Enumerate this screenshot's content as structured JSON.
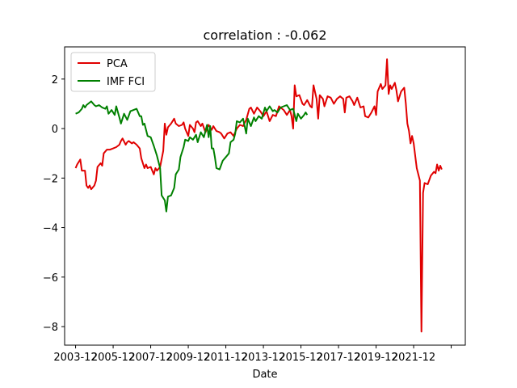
{
  "chart_data": {
    "type": "line",
    "title": "correlation : -0.062",
    "xlabel": "Date",
    "ylabel": "",
    "xlim": [
      "2003-05",
      "2024-09"
    ],
    "ylim": [
      -8.75,
      3.3
    ],
    "grid": false,
    "legend_position": "top-left",
    "x_tick_labels": [
      {
        "date": "2003-12",
        "label": "2003-12"
      },
      {
        "date": "2005-12",
        "label": "2005-12"
      },
      {
        "date": "2007-12",
        "label": "2007-12"
      },
      {
        "date": "2009-12",
        "label": "2009-12"
      },
      {
        "date": "2011-12",
        "label": "2011-12"
      },
      {
        "date": "2013-12",
        "label": "2013-12"
      },
      {
        "date": "2015-12",
        "label": "2015-12"
      },
      {
        "date": "2017-12",
        "label": "2017-12"
      },
      {
        "date": "2019-12",
        "label": "2019-12"
      },
      {
        "date": "2021-12",
        "label": "2021-12"
      },
      {
        "date": "2023-12",
        "label": ""
      }
    ],
    "y_ticks": [
      {
        "value": 2,
        "label": "2"
      },
      {
        "value": 0,
        "label": "0"
      },
      {
        "value": -2,
        "label": "−2"
      },
      {
        "value": -4,
        "label": "−4"
      },
      {
        "value": -6,
        "label": "−6"
      },
      {
        "value": -8,
        "label": "−8"
      }
    ],
    "series": [
      {
        "name": "PCA",
        "color": "#e00000",
        "points": [
          [
            "2003-12",
            -1.6
          ],
          [
            "2004-01",
            -1.45
          ],
          [
            "2004-03",
            -1.25
          ],
          [
            "2004-04",
            -1.7
          ],
          [
            "2004-06",
            -1.7
          ],
          [
            "2004-07",
            -2.3
          ],
          [
            "2004-08",
            -2.4
          ],
          [
            "2004-09",
            -2.3
          ],
          [
            "2004-10",
            -2.45
          ],
          [
            "2004-12",
            -2.3
          ],
          [
            "2005-01",
            -2.1
          ],
          [
            "2005-02",
            -1.55
          ],
          [
            "2005-04",
            -1.4
          ],
          [
            "2005-05",
            -1.5
          ],
          [
            "2005-06",
            -1.0
          ],
          [
            "2005-08",
            -0.85
          ],
          [
            "2005-10",
            -0.85
          ],
          [
            "2005-12",
            -0.8
          ],
          [
            "2006-02",
            -0.75
          ],
          [
            "2006-04",
            -0.65
          ],
          [
            "2006-05",
            -0.5
          ],
          [
            "2006-06",
            -0.4
          ],
          [
            "2006-08",
            -0.65
          ],
          [
            "2006-09",
            -0.55
          ],
          [
            "2006-10",
            -0.5
          ],
          [
            "2006-12",
            -0.6
          ],
          [
            "2007-01",
            -0.55
          ],
          [
            "2007-03",
            -0.65
          ],
          [
            "2007-05",
            -0.8
          ],
          [
            "2007-06",
            -1.2
          ],
          [
            "2007-08",
            -1.6
          ],
          [
            "2007-09",
            -1.45
          ],
          [
            "2007-10",
            -1.6
          ],
          [
            "2007-12",
            -1.55
          ],
          [
            "2008-02",
            -1.85
          ],
          [
            "2008-03",
            -1.6
          ],
          [
            "2008-04",
            -1.7
          ],
          [
            "2008-06",
            -1.55
          ],
          [
            "2008-08",
            -0.9
          ],
          [
            "2008-09",
            0.2
          ],
          [
            "2008-10",
            -0.25
          ],
          [
            "2008-11",
            0.05
          ],
          [
            "2009-01",
            0.2
          ],
          [
            "2009-03",
            0.4
          ],
          [
            "2009-04",
            0.2
          ],
          [
            "2009-06",
            0.1
          ],
          [
            "2009-08",
            0.15
          ],
          [
            "2009-09",
            0.25
          ],
          [
            "2009-10",
            0.0
          ],
          [
            "2009-12",
            -0.3
          ],
          [
            "2010-01",
            0.15
          ],
          [
            "2010-03",
            0.0
          ],
          [
            "2010-04",
            -0.15
          ],
          [
            "2010-05",
            0.25
          ],
          [
            "2010-06",
            0.3
          ],
          [
            "2010-08",
            0.1
          ],
          [
            "2010-09",
            0.2
          ],
          [
            "2010-11",
            -0.15
          ],
          [
            "2011-01",
            0.15
          ],
          [
            "2011-03",
            -0.05
          ],
          [
            "2011-04",
            0.1
          ],
          [
            "2011-06",
            -0.1
          ],
          [
            "2011-08",
            -0.15
          ],
          [
            "2011-09",
            -0.2
          ],
          [
            "2011-11",
            -0.4
          ],
          [
            "2012-01",
            -0.2
          ],
          [
            "2012-03",
            -0.15
          ],
          [
            "2012-05",
            -0.3
          ],
          [
            "2012-07",
            0.0
          ],
          [
            "2012-09",
            0.15
          ],
          [
            "2012-11",
            0.1
          ],
          [
            "2013-01",
            0.35
          ],
          [
            "2013-03",
            0.8
          ],
          [
            "2013-04",
            0.85
          ],
          [
            "2013-06",
            0.6
          ],
          [
            "2013-08",
            0.85
          ],
          [
            "2013-10",
            0.7
          ],
          [
            "2013-12",
            0.5
          ],
          [
            "2014-01",
            0.6
          ],
          [
            "2014-02",
            0.7
          ],
          [
            "2014-04",
            0.3
          ],
          [
            "2014-06",
            0.55
          ],
          [
            "2014-08",
            0.5
          ],
          [
            "2014-10",
            0.9
          ],
          [
            "2014-12",
            0.8
          ],
          [
            "2015-01",
            0.75
          ],
          [
            "2015-03",
            0.55
          ],
          [
            "2015-05",
            0.75
          ],
          [
            "2015-06",
            0.5
          ],
          [
            "2015-07",
            0.0
          ],
          [
            "2015-08",
            1.75
          ],
          [
            "2015-09",
            1.3
          ],
          [
            "2015-11",
            1.35
          ],
          [
            "2016-01",
            1.0
          ],
          [
            "2016-02",
            0.95
          ],
          [
            "2016-04",
            1.15
          ],
          [
            "2016-06",
            0.9
          ],
          [
            "2016-07",
            0.85
          ],
          [
            "2016-08",
            1.75
          ],
          [
            "2016-10",
            1.2
          ],
          [
            "2016-11",
            0.4
          ],
          [
            "2016-12",
            1.35
          ],
          [
            "2017-02",
            1.2
          ],
          [
            "2017-03",
            0.9
          ],
          [
            "2017-05",
            1.3
          ],
          [
            "2017-07",
            1.25
          ],
          [
            "2017-09",
            1.0
          ],
          [
            "2017-11",
            1.2
          ],
          [
            "2018-01",
            1.3
          ],
          [
            "2018-03",
            1.2
          ],
          [
            "2018-04",
            0.65
          ],
          [
            "2018-05",
            1.25
          ],
          [
            "2018-07",
            1.3
          ],
          [
            "2018-09",
            1.1
          ],
          [
            "2018-10",
            0.95
          ],
          [
            "2018-12",
            1.25
          ],
          [
            "2019-02",
            0.85
          ],
          [
            "2019-04",
            0.9
          ],
          [
            "2019-05",
            0.5
          ],
          [
            "2019-07",
            0.45
          ],
          [
            "2019-09",
            0.65
          ],
          [
            "2019-11",
            0.9
          ],
          [
            "2019-12",
            0.55
          ],
          [
            "2020-01",
            1.5
          ],
          [
            "2020-03",
            1.8
          ],
          [
            "2020-04",
            1.6
          ],
          [
            "2020-06",
            1.75
          ],
          [
            "2020-07",
            2.8
          ],
          [
            "2020-08",
            1.4
          ],
          [
            "2020-09",
            1.75
          ],
          [
            "2020-10",
            1.6
          ],
          [
            "2020-12",
            1.85
          ],
          [
            "2021-01",
            1.55
          ],
          [
            "2021-02",
            1.1
          ],
          [
            "2021-04",
            1.5
          ],
          [
            "2021-06",
            1.65
          ],
          [
            "2021-07",
            1.0
          ],
          [
            "2021-08",
            0.2
          ],
          [
            "2021-09",
            -0.1
          ],
          [
            "2021-10",
            -0.6
          ],
          [
            "2021-11",
            -0.3
          ],
          [
            "2021-12",
            -0.6
          ],
          [
            "2022-01",
            -1.1
          ],
          [
            "2022-02",
            -1.6
          ],
          [
            "2022-04",
            -2.1
          ],
          [
            "2022-05",
            -8.2
          ],
          [
            "2022-06",
            -2.6
          ],
          [
            "2022-07",
            -2.2
          ],
          [
            "2022-09",
            -2.25
          ],
          [
            "2022-11",
            -1.9
          ],
          [
            "2023-01",
            -1.75
          ],
          [
            "2023-02",
            -1.8
          ],
          [
            "2023-03",
            -1.45
          ],
          [
            "2023-04",
            -1.7
          ],
          [
            "2023-05",
            -1.5
          ],
          [
            "2023-06",
            -1.65
          ]
        ]
      },
      {
        "name": "IMF FCI",
        "color": "#008000",
        "points": [
          [
            "2003-12",
            0.6
          ],
          [
            "2004-02",
            0.65
          ],
          [
            "2004-04",
            0.8
          ],
          [
            "2004-05",
            0.95
          ],
          [
            "2004-06",
            0.85
          ],
          [
            "2004-07",
            0.95
          ],
          [
            "2004-09",
            1.05
          ],
          [
            "2004-10",
            1.1
          ],
          [
            "2004-12",
            0.95
          ],
          [
            "2005-01",
            0.9
          ],
          [
            "2005-03",
            0.95
          ],
          [
            "2005-05",
            0.85
          ],
          [
            "2005-07",
            0.8
          ],
          [
            "2005-08",
            0.9
          ],
          [
            "2005-09",
            0.6
          ],
          [
            "2005-11",
            0.75
          ],
          [
            "2006-01",
            0.55
          ],
          [
            "2006-02",
            0.9
          ],
          [
            "2006-04",
            0.45
          ],
          [
            "2006-05",
            0.2
          ],
          [
            "2006-07",
            0.6
          ],
          [
            "2006-09",
            0.35
          ],
          [
            "2006-11",
            0.7
          ],
          [
            "2007-01",
            0.75
          ],
          [
            "2007-03",
            0.8
          ],
          [
            "2007-05",
            0.5
          ],
          [
            "2007-06",
            0.5
          ],
          [
            "2007-07",
            0.15
          ],
          [
            "2007-08",
            0.2
          ],
          [
            "2007-10",
            -0.3
          ],
          [
            "2007-12",
            -0.35
          ],
          [
            "2008-02",
            -0.7
          ],
          [
            "2008-04",
            -1.1
          ],
          [
            "2008-06",
            -1.6
          ],
          [
            "2008-07",
            -2.7
          ],
          [
            "2008-09",
            -2.9
          ],
          [
            "2008-10",
            -3.35
          ],
          [
            "2008-11",
            -2.75
          ],
          [
            "2009-01",
            -2.7
          ],
          [
            "2009-03",
            -2.4
          ],
          [
            "2009-04",
            -1.85
          ],
          [
            "2009-06",
            -1.65
          ],
          [
            "2009-07",
            -1.15
          ],
          [
            "2009-09",
            -0.75
          ],
          [
            "2009-10",
            -0.45
          ],
          [
            "2009-12",
            -0.5
          ],
          [
            "2010-01",
            -0.35
          ],
          [
            "2010-03",
            -0.45
          ],
          [
            "2010-05",
            -0.25
          ],
          [
            "2010-06",
            -0.55
          ],
          [
            "2010-08",
            -0.15
          ],
          [
            "2010-10",
            -0.35
          ],
          [
            "2010-12",
            0.15
          ],
          [
            "2011-01",
            -0.35
          ],
          [
            "2011-02",
            0.1
          ],
          [
            "2011-03",
            -0.8
          ],
          [
            "2011-04",
            -0.8
          ],
          [
            "2011-05",
            -1.15
          ],
          [
            "2011-06",
            -1.6
          ],
          [
            "2011-08",
            -1.65
          ],
          [
            "2011-10",
            -1.3
          ],
          [
            "2011-12",
            -1.15
          ],
          [
            "2012-02",
            -1.0
          ],
          [
            "2012-03",
            -0.55
          ],
          [
            "2012-05",
            -0.45
          ],
          [
            "2012-06",
            -0.2
          ],
          [
            "2012-07",
            0.3
          ],
          [
            "2012-09",
            0.25
          ],
          [
            "2012-11",
            0.4
          ],
          [
            "2013-01",
            -0.2
          ],
          [
            "2013-02",
            0.4
          ],
          [
            "2013-04",
            0.1
          ],
          [
            "2013-06",
            0.45
          ],
          [
            "2013-07",
            0.3
          ],
          [
            "2013-09",
            0.5
          ],
          [
            "2013-11",
            0.4
          ],
          [
            "2014-01",
            0.85
          ],
          [
            "2014-02",
            0.7
          ],
          [
            "2014-04",
            0.9
          ],
          [
            "2014-06",
            0.7
          ],
          [
            "2014-07",
            0.75
          ],
          [
            "2014-09",
            0.65
          ],
          [
            "2014-11",
            0.85
          ],
          [
            "2015-01",
            0.9
          ],
          [
            "2015-03",
            0.95
          ],
          [
            "2015-05",
            0.75
          ],
          [
            "2015-07",
            0.8
          ],
          [
            "2015-09",
            0.3
          ],
          [
            "2015-10",
            0.6
          ],
          [
            "2015-12",
            0.4
          ],
          [
            "2016-02",
            0.55
          ],
          [
            "2016-03",
            0.65
          ],
          [
            "2016-04",
            0.55
          ]
        ]
      }
    ]
  }
}
